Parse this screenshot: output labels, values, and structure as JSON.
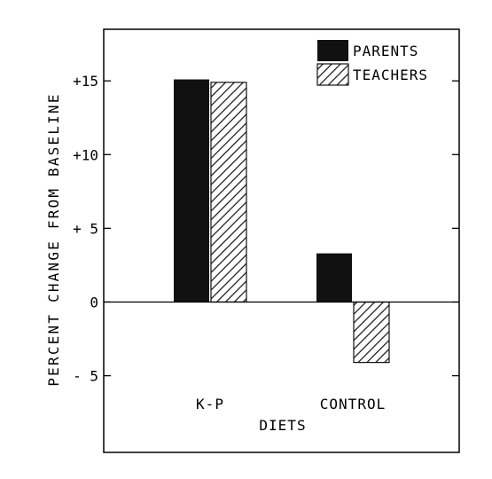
{
  "chart_data": {
    "type": "bar",
    "categories": [
      "K-P",
      "CONTROL"
    ],
    "series": [
      {
        "name": "PARENTS",
        "values": [
          15.1,
          3.3
        ],
        "pattern": "solid"
      },
      {
        "name": "TEACHERS",
        "values": [
          14.9,
          -4.1
        ],
        "pattern": "diagonal-hatch"
      }
    ],
    "xlabel": "DIETS",
    "ylabel": "PERCENT CHANGE FROM BASELINE",
    "ylim": [
      -10.2,
      18.5
    ],
    "yticks": [
      {
        "value": 15,
        "label": "+15"
      },
      {
        "value": 10,
        "label": "+10"
      },
      {
        "value": 5,
        "label": "+ 5"
      },
      {
        "value": 0,
        "label": "0"
      },
      {
        "value": -5,
        "label": "- 5"
      }
    ],
    "legend": {
      "placement": "top-right"
    },
    "grid": false,
    "colors": {
      "bars": "#111111",
      "axis": "#000000"
    }
  }
}
